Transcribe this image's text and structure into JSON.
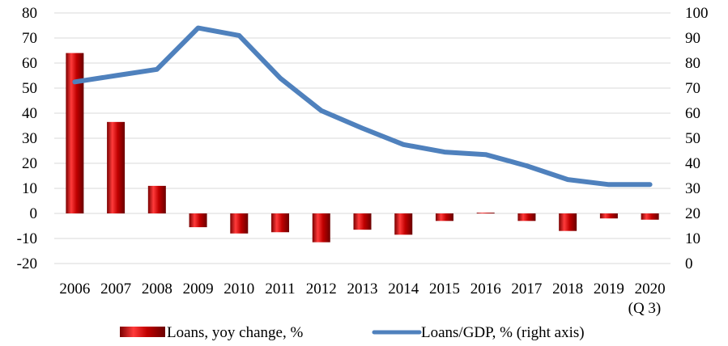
{
  "chart_data": {
    "type": "bar",
    "categories": [
      "2006",
      "2007",
      "2008",
      "2009",
      "2010",
      "2011",
      "2012",
      "2013",
      "2014",
      "2015",
      "2016",
      "2017",
      "2018",
      "2019",
      "2020\n(Q 3)"
    ],
    "series": [
      {
        "name": "Loans, yoy change, %",
        "type": "bar",
        "axis": "left",
        "color": "#c00000",
        "values": [
          64,
          36.5,
          11,
          -5.5,
          -8,
          -7.5,
          -11.5,
          -6.5,
          -8.5,
          -3,
          0.3,
          -3,
          -7,
          -2,
          -2.5
        ]
      },
      {
        "name": "Loans/GDP, % (right axis)",
        "type": "line",
        "axis": "right",
        "color": "#4f81bd",
        "values": [
          72.5,
          75,
          77.5,
          94,
          91,
          74,
          61,
          54,
          47.5,
          44.5,
          43.5,
          39,
          33.5,
          31.5,
          31.5
        ]
      }
    ],
    "left_axis": {
      "min": -20,
      "max": 80,
      "step": 10
    },
    "right_axis": {
      "min": 0,
      "max": 100,
      "step": 10
    },
    "grid": true,
    "legend": "bottom"
  }
}
